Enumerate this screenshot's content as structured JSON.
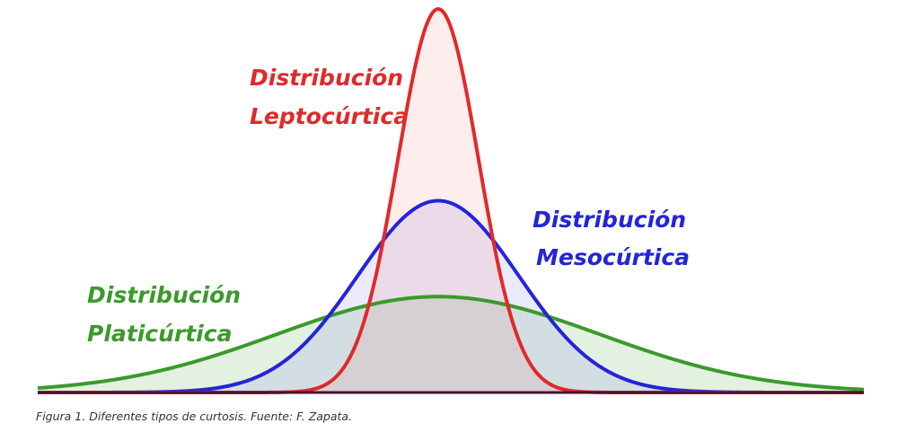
{
  "figure": {
    "caption": "Figura 1. Diferentes tipos de curtosis. Fuente: F. Zapata.",
    "curves": [
      {
        "key": "platicurtica",
        "label_lines": [
          "Distribución",
          "Platicúrtica"
        ],
        "stroke_color": "#3a9a2a",
        "fill_color": "#3a9a2a",
        "peak_fraction": 0.25,
        "spread": 3.0
      },
      {
        "key": "mesocurtica",
        "label_lines": [
          "Distribución",
          "Mesocúrtica"
        ],
        "stroke_color": "#2424d8",
        "fill_color": "#6a6ae6",
        "peak_fraction": 0.5,
        "spread": 1.5
      },
      {
        "key": "leptocurtica",
        "label_lines": [
          "Distribución",
          "Leptocúrtica"
        ],
        "stroke_color": "#e02a2a",
        "fill_color": "#f08080",
        "peak_fraction": 1.0,
        "spread": 0.75
      }
    ],
    "baseline_color": "#4a1030"
  }
}
